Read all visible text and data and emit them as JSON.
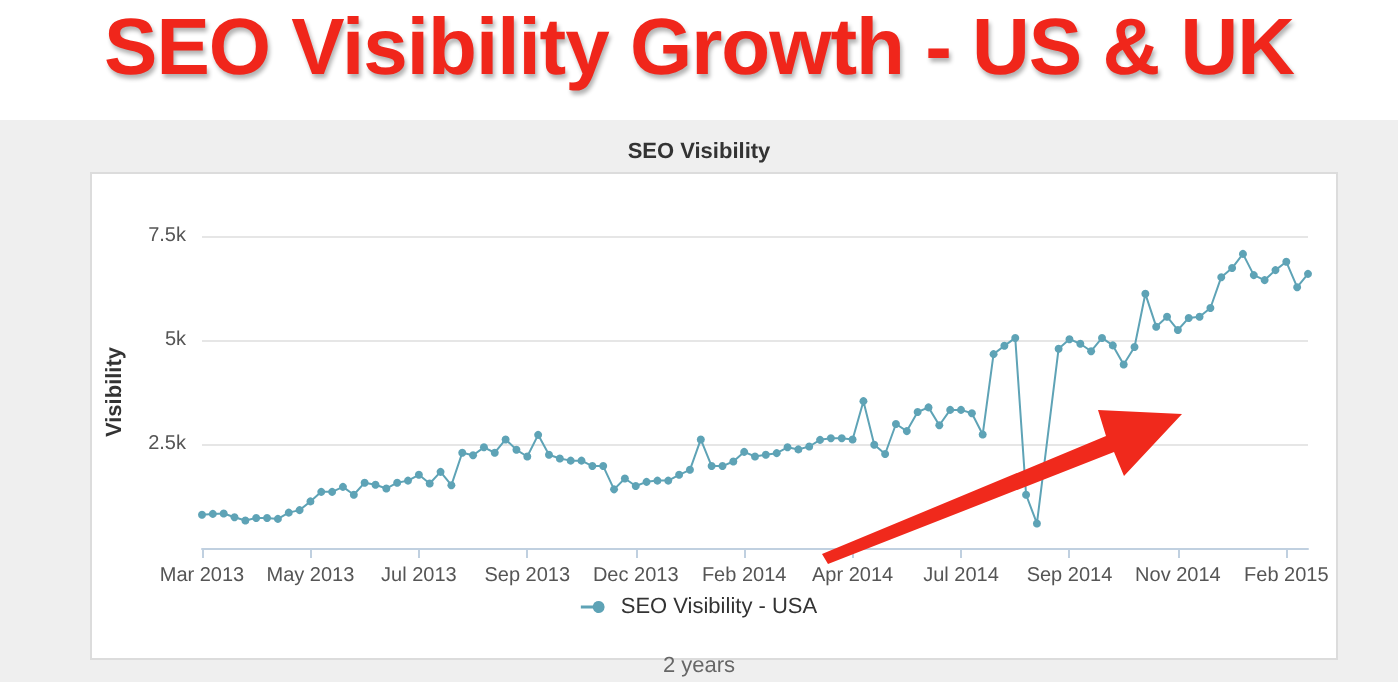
{
  "chart_data": {
    "type": "line",
    "title": "SEO Visibility Growth - US & UK",
    "subtitle": "SEO Visibility",
    "ylabel": "Visibility",
    "categories": [
      "Mar 2013",
      null,
      null,
      null,
      null,
      null,
      null,
      null,
      null,
      null,
      "May 2013",
      null,
      null,
      null,
      null,
      null,
      null,
      null,
      null,
      null,
      "Jul 2013",
      null,
      null,
      null,
      null,
      null,
      null,
      null,
      null,
      null,
      "Sep 2013",
      null,
      null,
      null,
      null,
      null,
      null,
      null,
      null,
      null,
      "Dec 2013",
      null,
      null,
      null,
      null,
      null,
      null,
      null,
      null,
      null,
      "Feb 2014",
      null,
      null,
      null,
      null,
      null,
      null,
      null,
      null,
      null,
      "Apr 2014",
      null,
      null,
      null,
      null,
      null,
      null,
      null,
      null,
      null,
      "Jul 2014",
      null,
      null,
      null,
      null,
      null,
      null,
      null,
      null,
      null,
      "Sep 2014",
      null,
      null,
      null,
      null,
      null,
      null,
      null,
      null,
      null,
      "Nov 2014",
      null,
      null,
      null,
      null,
      null,
      null,
      null,
      null,
      null,
      "Feb 2015",
      null,
      null
    ],
    "series": [
      {
        "name": "SEO Visibility - USA",
        "color": "#5ea3b6",
        "values": [
          800,
          820,
          830,
          740,
          660,
          720,
          720,
          700,
          850,
          910,
          1120,
          1350,
          1350,
          1470,
          1280,
          1570,
          1520,
          1430,
          1570,
          1620,
          1760,
          1550,
          1830,
          1510,
          2290,
          2230,
          2420,
          2290,
          2610,
          2360,
          2200,
          2720,
          2240,
          2150,
          2100,
          2100,
          1970,
          1970,
          1410,
          1670,
          1490,
          1590,
          1620,
          1620,
          1760,
          1880,
          2610,
          1970,
          1970,
          2080,
          2310,
          2200,
          2240,
          2280,
          2420,
          2370,
          2440,
          2600,
          2640,
          2640,
          2610,
          3530,
          2480,
          2260,
          2980,
          2810,
          3270,
          3380,
          2950,
          3320,
          3320,
          3240,
          2730,
          4660,
          4860,
          5050,
          1280,
          590,
          null,
          4790,
          5020,
          4910,
          4730,
          5050,
          4870,
          4410,
          4830,
          6110,
          5320,
          5560,
          5240,
          5530,
          5560,
          5770,
          6510,
          6730,
          7070,
          6560,
          6440,
          6680,
          6880,
          6270,
          6590
        ]
      }
    ],
    "ylim": [
      0,
      7500
    ],
    "yticks": [
      {
        "value": 0,
        "label": null
      },
      {
        "value": 2500,
        "label": "2.5k"
      },
      {
        "value": 5000,
        "label": "5k"
      },
      {
        "value": 7500,
        "label": "7.5k"
      }
    ],
    "grid": "y",
    "legend": "bottom",
    "marker": "circle",
    "line_style": "solid",
    "annotations": [
      "2 years"
    ]
  }
}
